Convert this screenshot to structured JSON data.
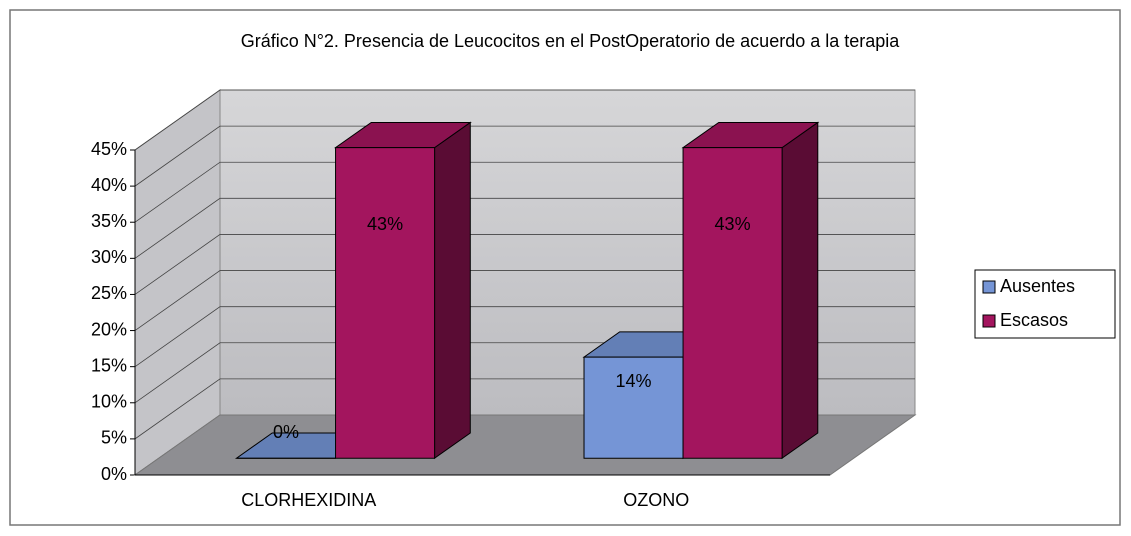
{
  "chart_data": {
    "type": "bar3d",
    "title": "Gráfico N°2. Presencia de Leucocitos en el PostOperatorio de acuerdo a la terapia",
    "categories": [
      "CLORHEXIDINA",
      "OZONO"
    ],
    "series": [
      {
        "name": "Ausentes",
        "color": "#7595d6",
        "values": [
          0,
          14
        ],
        "value_labels": [
          "0%",
          "14%"
        ]
      },
      {
        "name": "Escasos",
        "color": "#a3155e",
        "values": [
          43,
          43
        ],
        "value_labels": [
          "43%",
          "43%"
        ]
      }
    ],
    "ylim": [
      0,
      45
    ],
    "yticks": [
      {
        "value": 0,
        "label": "0%"
      },
      {
        "value": 5,
        "label": "5%"
      },
      {
        "value": 10,
        "label": "10%"
      },
      {
        "value": 15,
        "label": "15%"
      },
      {
        "value": 20,
        "label": "20%"
      },
      {
        "value": 25,
        "label": "25%"
      },
      {
        "value": 30,
        "label": "30%"
      },
      {
        "value": 35,
        "label": "35%"
      },
      {
        "value": 40,
        "label": "40%"
      },
      {
        "value": 45,
        "label": "45%"
      }
    ],
    "grid": true,
    "legend": "right"
  }
}
